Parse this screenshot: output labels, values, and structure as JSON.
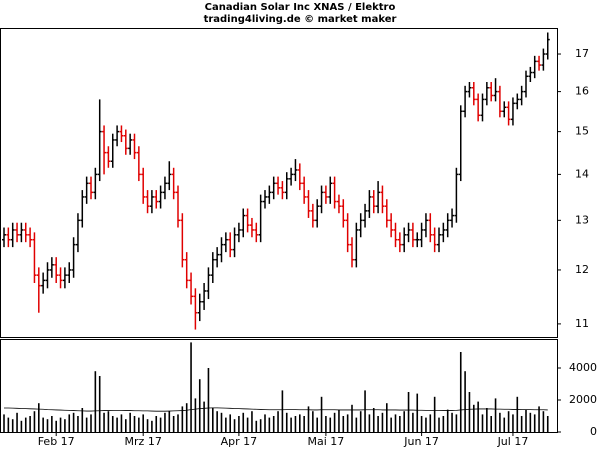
{
  "chart_data": {
    "type": "ohlc",
    "title": "Canadian Solar Inc XNAS / Elektro",
    "subtitle": "trading4living.de © market maker",
    "categories": [
      null,
      null,
      null,
      null,
      null,
      null,
      null,
      null,
      null,
      null,
      null,
      null,
      "Feb 17",
      null,
      null,
      null,
      null,
      null,
      null,
      null,
      null,
      null,
      null,
      null,
      null,
      null,
      null,
      null,
      null,
      null,
      null,
      null,
      "Mrz 17",
      null,
      null,
      null,
      null,
      null,
      null,
      null,
      null,
      null,
      null,
      null,
      null,
      null,
      null,
      null,
      null,
      null,
      null,
      null,
      null,
      null,
      "Apr 17",
      null,
      null,
      null,
      null,
      null,
      null,
      null,
      null,
      null,
      null,
      null,
      null,
      null,
      null,
      null,
      null,
      null,
      null,
      null,
      "Mai 17",
      null,
      null,
      null,
      null,
      null,
      null,
      null,
      null,
      null,
      null,
      null,
      null,
      null,
      null,
      null,
      null,
      null,
      null,
      null,
      null,
      null,
      "Jun 17",
      null,
      null,
      null,
      null,
      null,
      null,
      null,
      null,
      null,
      null,
      null,
      null,
      null,
      null,
      null,
      null,
      null,
      null,
      null,
      null,
      "Jul 17",
      null,
      null,
      null,
      null,
      null,
      null,
      null,
      null
    ],
    "open": [
      12.6,
      12.7,
      12.6,
      12.8,
      12.7,
      12.8,
      12.7,
      12.6,
      11.9,
      11.7,
      11.8,
      12.0,
      12.1,
      11.9,
      11.8,
      11.9,
      12.0,
      12.5,
      13.0,
      13.5,
      13.8,
      13.6,
      14.0,
      15.0,
      14.5,
      14.3,
      14.8,
      15.0,
      14.9,
      14.6,
      14.8,
      14.5,
      14.0,
      13.5,
      13.3,
      13.5,
      13.4,
      13.6,
      13.8,
      14.0,
      13.6,
      13.0,
      12.2,
      11.8,
      11.5,
      11.2,
      11.4,
      11.6,
      11.9,
      12.2,
      12.3,
      12.5,
      12.6,
      12.4,
      12.7,
      12.8,
      13.1,
      12.9,
      12.8,
      12.7,
      13.4,
      13.5,
      13.6,
      13.8,
      13.7,
      13.6,
      13.9,
      14.0,
      14.1,
      13.8,
      13.5,
      13.2,
      13.0,
      13.3,
      13.6,
      13.5,
      13.8,
      13.4,
      13.3,
      13.0,
      12.5,
      12.2,
      12.8,
      13.0,
      13.2,
      13.5,
      13.3,
      13.6,
      13.3,
      13.0,
      12.8,
      12.6,
      12.5,
      12.7,
      12.8,
      12.6,
      12.6,
      12.8,
      13.0,
      12.7,
      12.5,
      12.7,
      12.8,
      13.0,
      13.1,
      14.0,
      15.5,
      16.0,
      16.1,
      15.8,
      15.4,
      15.8,
      16.1,
      15.9,
      16.0,
      15.5,
      15.6,
      15.3,
      15.7,
      15.8,
      16.0,
      16.4,
      16.5,
      16.8,
      16.7,
      17.0
    ],
    "high": [
      12.85,
      12.85,
      12.95,
      12.95,
      12.95,
      12.95,
      12.85,
      12.75,
      12.05,
      11.95,
      12.15,
      12.25,
      12.25,
      12.05,
      12.05,
      12.15,
      12.65,
      13.15,
      13.65,
      13.95,
      13.95,
      14.15,
      15.8,
      15.15,
      14.65,
      14.95,
      15.15,
      15.15,
      15.05,
      14.95,
      14.95,
      14.65,
      14.15,
      13.65,
      13.65,
      13.65,
      13.75,
      13.95,
      14.3,
      14.15,
      13.75,
      13.15,
      12.35,
      11.95,
      11.65,
      11.55,
      11.75,
      12.05,
      12.35,
      12.45,
      12.65,
      12.75,
      12.75,
      12.85,
      12.95,
      13.25,
      13.25,
      13.05,
      12.95,
      13.55,
      13.65,
      13.75,
      13.95,
      13.95,
      13.85,
      14.05,
      14.15,
      14.35,
      14.25,
      13.95,
      13.65,
      13.35,
      13.45,
      13.75,
      13.75,
      13.95,
      13.95,
      13.55,
      13.45,
      13.15,
      12.65,
      12.95,
      13.15,
      13.35,
      13.65,
      13.65,
      13.85,
      13.75,
      13.45,
      13.15,
      12.95,
      12.75,
      12.85,
      12.95,
      12.95,
      12.75,
      12.95,
      13.15,
      13.15,
      12.85,
      12.85,
      12.95,
      13.15,
      13.25,
      14.15,
      15.65,
      16.15,
      16.25,
      16.25,
      15.95,
      15.95,
      16.25,
      16.25,
      16.35,
      16.15,
      15.75,
      15.75,
      15.85,
      15.95,
      16.15,
      16.55,
      16.65,
      16.95,
      16.95,
      17.15,
      17.6
    ],
    "low": [
      12.45,
      12.45,
      12.45,
      12.55,
      12.55,
      12.55,
      12.45,
      11.75,
      11.2,
      11.55,
      11.65,
      11.85,
      11.75,
      11.65,
      11.65,
      11.75,
      11.85,
      12.35,
      12.85,
      13.35,
      13.45,
      13.45,
      13.85,
      14.0,
      14.15,
      14.15,
      14.65,
      14.75,
      14.45,
      14.45,
      14.35,
      13.85,
      13.35,
      13.15,
      13.15,
      13.25,
      13.25,
      13.45,
      13.65,
      13.45,
      12.85,
      12.05,
      11.65,
      11.35,
      10.9,
      11.05,
      11.25,
      11.45,
      11.75,
      12.05,
      12.15,
      12.35,
      12.25,
      12.25,
      12.55,
      12.65,
      12.75,
      12.65,
      12.55,
      12.55,
      13.25,
      13.35,
      13.45,
      13.55,
      13.45,
      13.45,
      13.75,
      13.85,
      13.65,
      13.35,
      13.05,
      12.85,
      12.85,
      13.15,
      13.35,
      13.35,
      13.25,
      13.15,
      12.85,
      12.35,
      12.05,
      12.05,
      12.65,
      12.85,
      13.05,
      13.15,
      13.15,
      13.15,
      12.85,
      12.65,
      12.45,
      12.35,
      12.35,
      12.55,
      12.45,
      12.45,
      12.45,
      12.65,
      12.55,
      12.35,
      12.35,
      12.55,
      12.65,
      12.85,
      12.95,
      13.85,
      15.35,
      15.85,
      15.65,
      15.25,
      15.25,
      15.65,
      15.75,
      15.75,
      15.35,
      15.35,
      15.15,
      15.15,
      15.55,
      15.65,
      15.85,
      16.25,
      16.35,
      16.55,
      16.55,
      16.85
    ],
    "close": [
      12.7,
      12.6,
      12.8,
      12.7,
      12.8,
      12.7,
      12.6,
      11.9,
      11.7,
      11.8,
      12.0,
      12.1,
      11.9,
      11.8,
      11.9,
      12.0,
      12.5,
      13.0,
      13.5,
      13.8,
      13.6,
      14.0,
      15.0,
      14.5,
      14.3,
      14.8,
      15.0,
      14.9,
      14.6,
      14.8,
      14.5,
      14.0,
      13.5,
      13.3,
      13.5,
      13.4,
      13.6,
      13.8,
      14.0,
      13.6,
      13.0,
      12.2,
      11.8,
      11.5,
      11.2,
      11.4,
      11.6,
      11.9,
      12.2,
      12.3,
      12.5,
      12.6,
      12.4,
      12.7,
      12.8,
      13.1,
      12.9,
      12.8,
      12.7,
      13.4,
      13.5,
      13.6,
      13.8,
      13.7,
      13.6,
      13.9,
      14.0,
      14.1,
      13.8,
      13.5,
      13.2,
      13.0,
      13.3,
      13.6,
      13.5,
      13.8,
      13.4,
      13.3,
      13.0,
      12.5,
      12.2,
      12.8,
      13.0,
      13.2,
      13.5,
      13.3,
      13.6,
      13.3,
      13.0,
      12.8,
      12.6,
      12.5,
      12.7,
      12.8,
      12.6,
      12.6,
      12.8,
      13.0,
      12.7,
      12.5,
      12.7,
      12.8,
      13.0,
      13.1,
      14.0,
      15.5,
      16.0,
      16.1,
      15.8,
      15.4,
      15.8,
      16.1,
      15.9,
      16.0,
      15.5,
      15.6,
      15.3,
      15.7,
      15.8,
      16.0,
      16.4,
      16.5,
      16.8,
      16.7,
      17.0,
      17.4
    ],
    "up_color": "#000000",
    "down_color": "#e00000",
    "log_scale": true,
    "ylim": [
      10.77,
      17.7
    ],
    "yticks": [
      11,
      12,
      13,
      14,
      15,
      16,
      17
    ],
    "volume": {
      "type": "bar",
      "color": "#000000",
      "average_color": "#000000",
      "values": [
        1100,
        900,
        800,
        1200,
        700,
        900,
        1000,
        1300,
        1800,
        900,
        800,
        1000,
        700,
        900,
        800,
        1100,
        1200,
        1000,
        1500,
        900,
        1100,
        3800,
        3500,
        1200,
        1300,
        1000,
        900,
        1100,
        800,
        1200,
        1000,
        900,
        1100,
        800,
        700,
        1000,
        900,
        1200,
        1300,
        1000,
        1100,
        1600,
        1800,
        5600,
        2100,
        3300,
        1900,
        4000,
        1500,
        1300,
        1200,
        900,
        1100,
        800,
        1000,
        1200,
        900,
        1300,
        700,
        800,
        1100,
        900,
        1000,
        1300,
        2600,
        1200,
        900,
        1000,
        1100,
        1000,
        1600,
        1300,
        900,
        2200,
        1000,
        900,
        1200,
        1400,
        1000,
        1100,
        1700,
        900,
        1300,
        2600,
        1100,
        1500,
        1000,
        1200,
        1800,
        900,
        1100,
        1000,
        1300,
        2500,
        1200,
        2400,
        1000,
        900,
        1100,
        2200,
        900,
        1000,
        1400,
        1200,
        1100,
        5000,
        3800,
        2500,
        1700,
        1900,
        1100,
        1500,
        1000,
        2100,
        1200,
        900,
        1300,
        1100,
        2200,
        1000,
        1400,
        1200,
        1100,
        1600,
        1300,
        1000
      ],
      "average": [
        1500,
        1500,
        1490,
        1480,
        1470,
        1460,
        1450,
        1440,
        1430,
        1420,
        1400,
        1390,
        1380,
        1370,
        1360,
        1350,
        1340,
        1330,
        1320,
        1310,
        1310,
        1320,
        1330,
        1340,
        1340,
        1350,
        1350,
        1350,
        1340,
        1340,
        1330,
        1330,
        1320,
        1320,
        1310,
        1300,
        1300,
        1300,
        1310,
        1320,
        1330,
        1340,
        1360,
        1400,
        1430,
        1460,
        1480,
        1500,
        1510,
        1510,
        1500,
        1490,
        1480,
        1470,
        1460,
        1450,
        1440,
        1430,
        1420,
        1410,
        1400,
        1390,
        1390,
        1390,
        1390,
        1400,
        1400,
        1400,
        1390,
        1390,
        1390,
        1380,
        1380,
        1390,
        1390,
        1390,
        1390,
        1380,
        1380,
        1380,
        1380,
        1380,
        1380,
        1390,
        1390,
        1390,
        1390,
        1380,
        1380,
        1380,
        1380,
        1370,
        1370,
        1370,
        1370,
        1360,
        1360,
        1350,
        1350,
        1350,
        1350,
        1340,
        1340,
        1340,
        1350,
        1380,
        1400,
        1420,
        1430,
        1440,
        1440,
        1440,
        1440,
        1430,
        1430,
        1420,
        1420,
        1410,
        1410,
        1400,
        1400,
        1400,
        1390,
        1390,
        1390,
        1380
      ],
      "ylim": [
        0,
        5750
      ],
      "yticks": [
        0,
        2000,
        4000
      ]
    }
  }
}
